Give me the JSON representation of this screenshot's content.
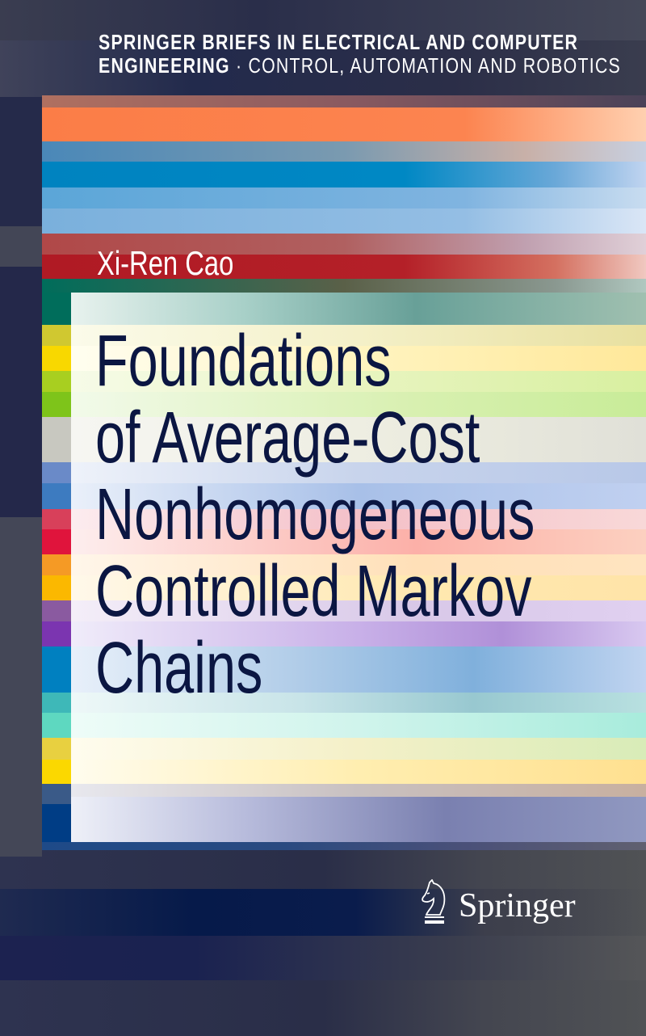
{
  "cover": {
    "series_line1": "SPRINGER BRIEFS IN ELECTRICAL AND COMPUTER",
    "series_line2_bold": "ENGINEERING",
    "series_separator": "·",
    "series_line2_light": "CONTROL, AUTOMATION AND ROBOTICS",
    "author": "Xi-Ren Cao",
    "title_lines": [
      "Foundations",
      "of Average-Cost",
      "Nonhomogeneous",
      "Controlled Markov",
      "Chains"
    ],
    "publisher": "Springer",
    "publisher_icon": "springer-horse-logo",
    "colors": {
      "background": "#2b2e48",
      "title_text": "#0b1642",
      "orange": "#fb7d47",
      "blue": "#0083c0",
      "red": "#b01a24",
      "teal": "#006d5b"
    }
  }
}
